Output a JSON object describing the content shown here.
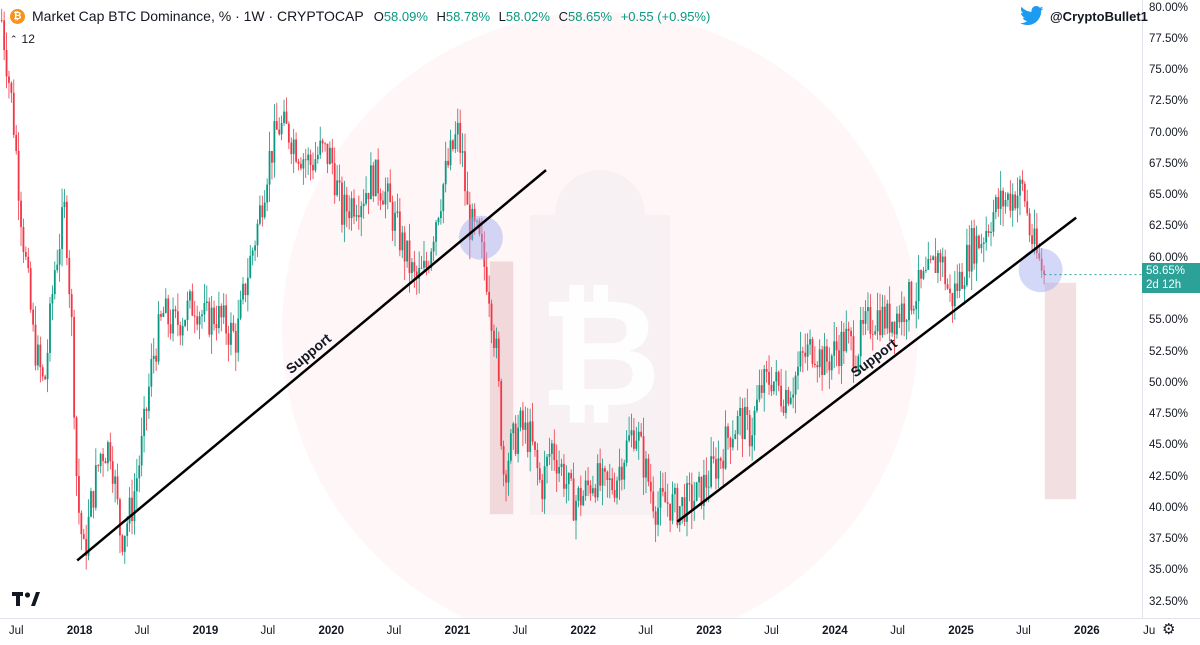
{
  "chart_data": {
    "type": "candlestick",
    "legend": {
      "title": "Market Cap BTC Dominance, % · 1W · CRYPTOCAP",
      "open_label": "O",
      "open": "58.09%",
      "high_label": "H",
      "high": "58.78%",
      "low_label": "L",
      "low": "58.02%",
      "close_label": "C",
      "close": "58.65%",
      "change": "+0.55 (+0.95%)"
    },
    "interval_count": "12",
    "handle": "@CryptoBullet1",
    "current_price": {
      "value": "58.65%",
      "countdown": "2d 12h"
    },
    "y_axis": {
      "unit": "%",
      "range": [
        31.2,
        80.6
      ],
      "ticks": [
        "80.00%",
        "77.50%",
        "75.00%",
        "72.50%",
        "70.00%",
        "67.50%",
        "65.00%",
        "62.50%",
        "60.00%",
        "55.00%",
        "52.50%",
        "50.00%",
        "47.50%",
        "45.00%",
        "42.50%",
        "40.00%",
        "37.50%",
        "35.00%",
        "32.50%"
      ]
    },
    "x_axis": {
      "range": [
        "2017-05-15",
        "2026-06-10"
      ],
      "ticks": [
        {
          "label": "Jul",
          "date": "2017-07-01",
          "year": false
        },
        {
          "label": "2018",
          "date": "2018-01-01",
          "year": true
        },
        {
          "label": "Jul",
          "date": "2018-07-01",
          "year": false
        },
        {
          "label": "2019",
          "date": "2019-01-01",
          "year": true
        },
        {
          "label": "Jul",
          "date": "2019-07-01",
          "year": false
        },
        {
          "label": "2020",
          "date": "2020-01-01",
          "year": true
        },
        {
          "label": "Jul",
          "date": "2020-07-01",
          "year": false
        },
        {
          "label": "2021",
          "date": "2021-01-01",
          "year": true
        },
        {
          "label": "Jul",
          "date": "2021-07-01",
          "year": false
        },
        {
          "label": "2022",
          "date": "2022-01-01",
          "year": true
        },
        {
          "label": "Jul",
          "date": "2022-07-01",
          "year": false
        },
        {
          "label": "2023",
          "date": "2023-01-01",
          "year": true
        },
        {
          "label": "Jul",
          "date": "2023-07-01",
          "year": false
        },
        {
          "label": "2024",
          "date": "2024-01-01",
          "year": true
        },
        {
          "label": "Jul",
          "date": "2024-07-01",
          "year": false
        },
        {
          "label": "2025",
          "date": "2025-01-01",
          "year": true
        },
        {
          "label": "Jul",
          "date": "2025-07-01",
          "year": false
        },
        {
          "label": "2026",
          "date": "2026-01-01",
          "year": true
        },
        {
          "label": "Ju",
          "date": "2026-07-01",
          "year": false
        }
      ]
    },
    "series": [
      {
        "name": "BTC Dominance",
        "points": [
          {
            "date": "2017-05-20",
            "value": 79.0
          },
          {
            "date": "2017-06-20",
            "value": 72.0
          },
          {
            "date": "2017-07-20",
            "value": 62.0
          },
          {
            "date": "2017-08-20",
            "value": 53.5
          },
          {
            "date": "2017-09-20",
            "value": 49.5
          },
          {
            "date": "2017-10-20",
            "value": 59.0
          },
          {
            "date": "2017-11-20",
            "value": 64.0
          },
          {
            "date": "2017-12-10",
            "value": 54.0
          },
          {
            "date": "2017-12-25",
            "value": 41.0
          },
          {
            "date": "2018-01-14",
            "value": 36.0
          },
          {
            "date": "2018-02-04",
            "value": 40.5
          },
          {
            "date": "2018-03-04",
            "value": 44.5
          },
          {
            "date": "2018-04-01",
            "value": 45.0
          },
          {
            "date": "2018-05-01",
            "value": 37.5
          },
          {
            "date": "2018-06-01",
            "value": 40.0
          },
          {
            "date": "2018-07-01",
            "value": 45.0
          },
          {
            "date": "2018-08-01",
            "value": 52.0
          },
          {
            "date": "2018-09-01",
            "value": 55.5
          },
          {
            "date": "2018-10-01",
            "value": 54.5
          },
          {
            "date": "2018-11-01",
            "value": 55.5
          },
          {
            "date": "2018-12-01",
            "value": 56.5
          },
          {
            "date": "2019-01-01",
            "value": 55.0
          },
          {
            "date": "2019-02-01",
            "value": 55.5
          },
          {
            "date": "2019-03-01",
            "value": 54.5
          },
          {
            "date": "2019-04-01",
            "value": 53.5
          },
          {
            "date": "2019-05-01",
            "value": 58.5
          },
          {
            "date": "2019-06-01",
            "value": 62.5
          },
          {
            "date": "2019-07-01",
            "value": 67.5
          },
          {
            "date": "2019-08-01",
            "value": 70.5
          },
          {
            "date": "2019-09-01",
            "value": 70.0
          },
          {
            "date": "2019-10-01",
            "value": 68.5
          },
          {
            "date": "2019-11-01",
            "value": 67.5
          },
          {
            "date": "2019-12-01",
            "value": 68.5
          },
          {
            "date": "2020-01-01",
            "value": 68.0
          },
          {
            "date": "2020-02-01",
            "value": 63.5
          },
          {
            "date": "2020-03-01",
            "value": 64.5
          },
          {
            "date": "2020-04-01",
            "value": 65.0
          },
          {
            "date": "2020-05-01",
            "value": 66.5
          },
          {
            "date": "2020-06-01",
            "value": 65.5
          },
          {
            "date": "2020-07-01",
            "value": 63.0
          },
          {
            "date": "2020-08-01",
            "value": 60.5
          },
          {
            "date": "2020-09-01",
            "value": 58.0
          },
          {
            "date": "2020-10-01",
            "value": 59.0
          },
          {
            "date": "2020-11-01",
            "value": 63.5
          },
          {
            "date": "2020-12-01",
            "value": 67.0
          },
          {
            "date": "2021-01-01",
            "value": 70.0
          },
          {
            "date": "2021-01-15",
            "value": 68.0
          },
          {
            "date": "2021-02-01",
            "value": 63.0
          },
          {
            "date": "2021-03-01",
            "value": 61.5
          },
          {
            "date": "2021-04-01",
            "value": 58.0
          },
          {
            "date": "2021-04-25",
            "value": 52.0
          },
          {
            "date": "2021-05-15",
            "value": 43.0
          },
          {
            "date": "2021-06-01",
            "value": 44.5
          },
          {
            "date": "2021-07-01",
            "value": 46.5
          },
          {
            "date": "2021-08-01",
            "value": 45.5
          },
          {
            "date": "2021-09-01",
            "value": 41.5
          },
          {
            "date": "2021-10-01",
            "value": 45.0
          },
          {
            "date": "2021-11-01",
            "value": 43.0
          },
          {
            "date": "2021-12-01",
            "value": 40.5
          },
          {
            "date": "2022-01-01",
            "value": 41.0
          },
          {
            "date": "2022-02-01",
            "value": 42.5
          },
          {
            "date": "2022-03-01",
            "value": 41.5
          },
          {
            "date": "2022-04-01",
            "value": 42.0
          },
          {
            "date": "2022-05-01",
            "value": 44.5
          },
          {
            "date": "2022-06-01",
            "value": 46.5
          },
          {
            "date": "2022-07-01",
            "value": 43.0
          },
          {
            "date": "2022-08-01",
            "value": 40.0
          },
          {
            "date": "2022-09-01",
            "value": 40.5
          },
          {
            "date": "2022-10-01",
            "value": 40.0
          },
          {
            "date": "2022-11-01",
            "value": 40.5
          },
          {
            "date": "2022-12-01",
            "value": 41.0
          },
          {
            "date": "2023-01-01",
            "value": 42.5
          },
          {
            "date": "2023-02-01",
            "value": 44.0
          },
          {
            "date": "2023-03-01",
            "value": 46.0
          },
          {
            "date": "2023-04-01",
            "value": 47.0
          },
          {
            "date": "2023-05-01",
            "value": 46.0
          },
          {
            "date": "2023-06-01",
            "value": 49.5
          },
          {
            "date": "2023-07-01",
            "value": 50.5
          },
          {
            "date": "2023-08-01",
            "value": 49.0
          },
          {
            "date": "2023-09-01",
            "value": 50.0
          },
          {
            "date": "2023-10-01",
            "value": 52.0
          },
          {
            "date": "2023-11-01",
            "value": 53.0
          },
          {
            "date": "2023-12-01",
            "value": 51.5
          },
          {
            "date": "2024-01-01",
            "value": 52.5
          },
          {
            "date": "2024-02-01",
            "value": 53.5
          },
          {
            "date": "2024-03-01",
            "value": 52.5
          },
          {
            "date": "2024-04-01",
            "value": 54.5
          },
          {
            "date": "2024-05-01",
            "value": 55.5
          },
          {
            "date": "2024-06-01",
            "value": 55.0
          },
          {
            "date": "2024-07-01",
            "value": 55.5
          },
          {
            "date": "2024-08-01",
            "value": 56.5
          },
          {
            "date": "2024-09-01",
            "value": 57.5
          },
          {
            "date": "2024-10-01",
            "value": 58.5
          },
          {
            "date": "2024-11-01",
            "value": 60.5
          },
          {
            "date": "2024-12-01",
            "value": 56.5
          },
          {
            "date": "2025-01-01",
            "value": 58.5
          },
          {
            "date": "2025-02-01",
            "value": 61.0
          },
          {
            "date": "2025-03-01",
            "value": 61.5
          },
          {
            "date": "2025-04-01",
            "value": 63.5
          },
          {
            "date": "2025-05-01",
            "value": 64.5
          },
          {
            "date": "2025-06-01",
            "value": 65.0
          },
          {
            "date": "2025-07-01",
            "value": 65.5
          },
          {
            "date": "2025-07-20",
            "value": 62.0
          },
          {
            "date": "2025-08-10",
            "value": 60.0
          },
          {
            "date": "2025-08-31",
            "value": 58.65
          }
        ]
      }
    ],
    "trendlines": [
      {
        "label": "Support",
        "from": {
          "date": "2017-12-25",
          "value": 35.8
        },
        "to": {
          "date": "2021-09-15",
          "value": 67.0
        }
      },
      {
        "label": "Support",
        "from": {
          "date": "2022-10-01",
          "value": 38.9
        },
        "to": {
          "date": "2025-12-01",
          "value": 63.2
        }
      }
    ],
    "annotations": {
      "circles": [
        {
          "date": "2021-03-10",
          "value": 61.6
        },
        {
          "date": "2025-08-20",
          "value": 59.0
        }
      ],
      "projection_boxes": [
        {
          "from_date": "2021-04-05",
          "to_date": "2021-06-12",
          "top": 59.7,
          "bottom": 39.5
        },
        {
          "from_date": "2025-09-01",
          "to_date": "2025-12-01",
          "top": 58.0,
          "bottom": 40.7
        }
      ]
    },
    "colors": {
      "up": "#089981",
      "down": "#f23645",
      "trendline": "#000000",
      "circle": "#9fa8f0",
      "projection": "#d5959a",
      "price_label": "#2ba197",
      "watermark": "#f23645",
      "twitter": "#1d9bf0",
      "btc": "#f7931a"
    }
  }
}
